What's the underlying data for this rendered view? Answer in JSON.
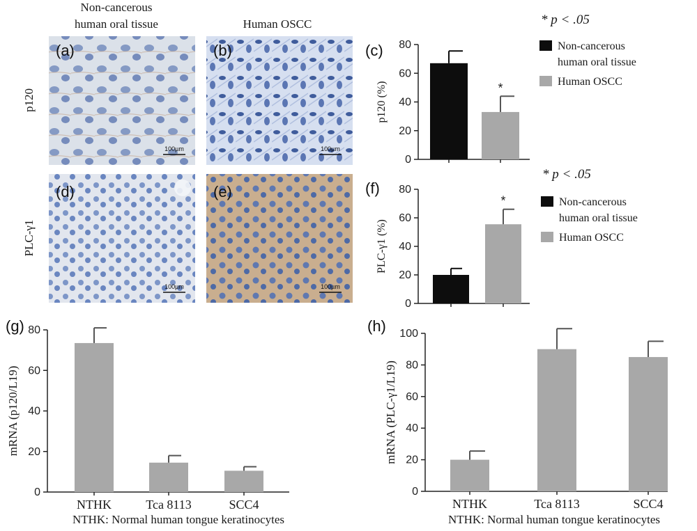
{
  "column_headers": [
    "Non-cancerous human oral tissue",
    "Human OSCC"
  ],
  "row_labels": [
    "p120",
    "PLC-γ1"
  ],
  "panels": [
    {
      "label": "(a)",
      "scale": "100µm"
    },
    {
      "label": "(b)",
      "scale": "100µm"
    },
    {
      "label": "(d)",
      "scale": "100µm"
    },
    {
      "label": "(e)",
      "scale": "100µm"
    }
  ],
  "colors": {
    "black_bar": "#0d0d0d",
    "gray_bar": "#a8a8a8",
    "tissue_bg": "#dfe6f0",
    "nuclei": "#5f79b5",
    "stain": "#c9ad8c"
  },
  "chart_data": [
    {
      "panel": "(c)",
      "type": "bar",
      "categories": [
        "Non-cancerous human oral tissue",
        "Human OSCC"
      ],
      "values": [
        67,
        33
      ],
      "errors": [
        8.5,
        11
      ],
      "significance": [
        "",
        "*"
      ],
      "ylabel": "p120 (%)",
      "ylim": [
        0,
        80
      ],
      "yticks": [
        0,
        20,
        40,
        60,
        80
      ],
      "legend": [
        "Non-cancerous",
        "human oral tissue",
        "Human OSCC"
      ],
      "legend_position": "right",
      "note": "* p < .05"
    },
    {
      "panel": "(f)",
      "type": "bar",
      "categories": [
        "Non-cancerous human oral tissue",
        "Human OSCC"
      ],
      "values": [
        20,
        55.5
      ],
      "errors": [
        4.5,
        10.5
      ],
      "significance": [
        "",
        "*"
      ],
      "ylabel": "PLC-γ1 (%)",
      "ylim": [
        0,
        80
      ],
      "yticks": [
        0,
        20,
        40,
        60,
        80
      ],
      "legend": [
        "Non-cancerous",
        "human oral tissue",
        "Human OSCC"
      ],
      "legend_position": "right",
      "note": "* p < .05"
    },
    {
      "panel": "(g)",
      "type": "bar",
      "categories": [
        "NTHK",
        "Tca 8113",
        "SCC4"
      ],
      "values": [
        73.5,
        14.5,
        10.5
      ],
      "errors": [
        7.5,
        3.5,
        2
      ],
      "ylabel": "mRNA (p120/L19)",
      "ylim": [
        0,
        80
      ],
      "yticks": [
        0,
        20,
        40,
        60,
        80
      ],
      "footnote": "NTHK: Normal human tongue keratinocytes"
    },
    {
      "panel": "(h)",
      "type": "bar",
      "categories": [
        "NTHK",
        "Tca 8113",
        "SCC4"
      ],
      "values": [
        20,
        90,
        85
      ],
      "errors": [
        5.5,
        13,
        10
      ],
      "ylabel": "mRNA (PLC-γ1/L19)",
      "ylim": [
        0,
        100
      ],
      "yticks": [
        0,
        20,
        40,
        60,
        80,
        100
      ],
      "footnote": "NTHK: Normal human tongue keratinocytes"
    }
  ]
}
